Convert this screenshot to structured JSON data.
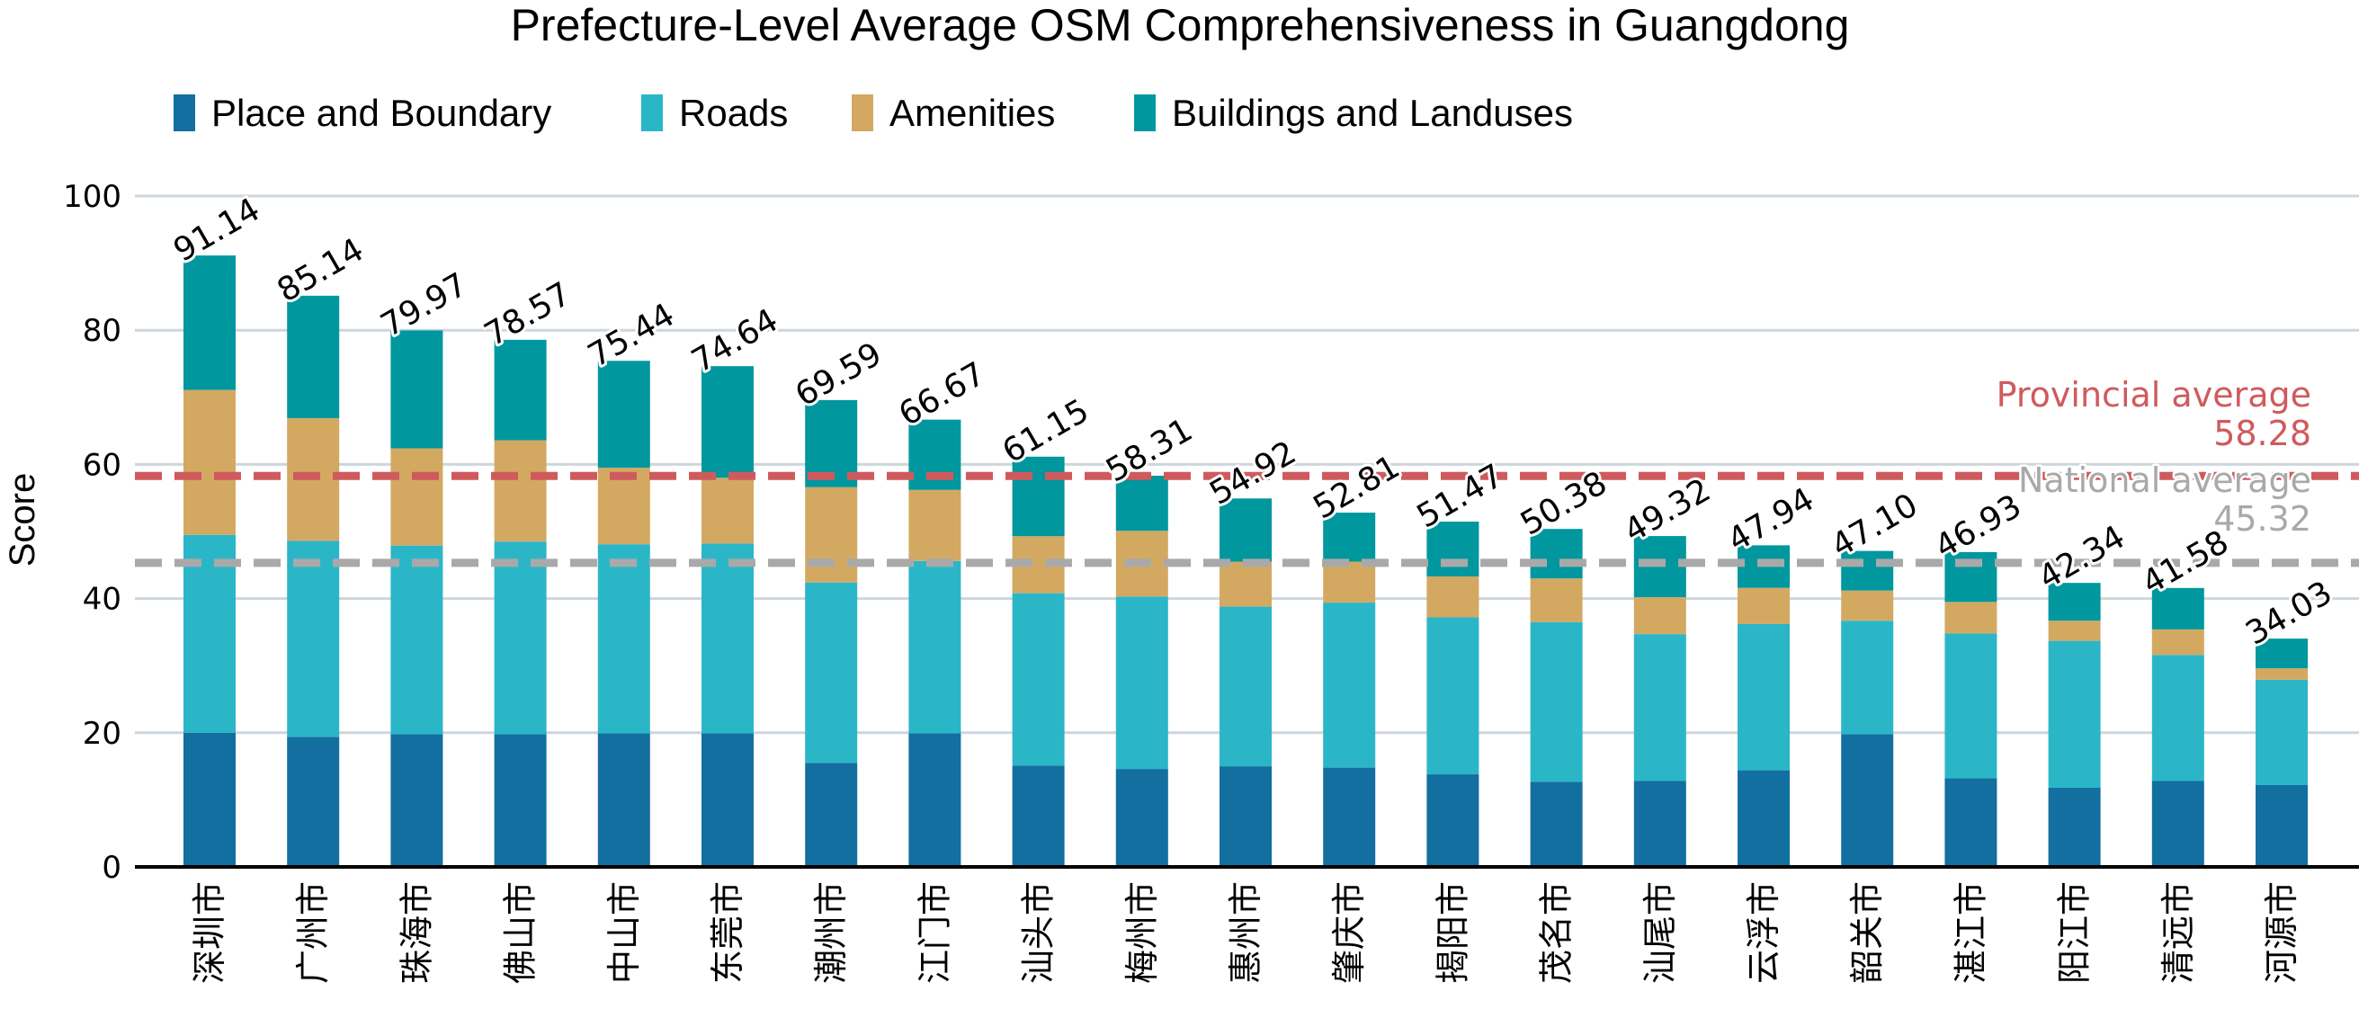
{
  "chart_data": {
    "type": "bar",
    "stacked": true,
    "title": "Prefecture-Level Average OSM Comprehensiveness in Guangdong",
    "xlabel": "",
    "ylabel": "Score",
    "ylim": [
      0,
      100
    ],
    "yticks": [
      0,
      20,
      40,
      60,
      80,
      100
    ],
    "grid": true,
    "legend_position": "top-left",
    "categories": [
      "深圳市",
      "广州市",
      "珠海市",
      "佛山市",
      "中山市",
      "东莞市",
      "潮州市",
      "江门市",
      "汕头市",
      "梅州市",
      "惠州市",
      "肇庆市",
      "揭阳市",
      "茂名市",
      "汕尾市",
      "云浮市",
      "韶关市",
      "湛江市",
      "阳江市",
      "清远市",
      "河源市"
    ],
    "totals": [
      91.14,
      85.14,
      79.97,
      78.57,
      75.44,
      74.64,
      69.59,
      66.67,
      61.15,
      58.31,
      54.92,
      52.81,
      51.47,
      50.38,
      49.32,
      47.94,
      47.1,
      46.93,
      42.34,
      41.58,
      34.03
    ],
    "total_labels": [
      "91.14",
      "85.14",
      "79.97",
      "78.57",
      "75.44",
      "74.64",
      "69.59",
      "66.67",
      "61.15",
      "58.31",
      "54.92",
      "52.81",
      "51.47",
      "50.38",
      "49.32",
      "47.94",
      "47.10",
      "46.93",
      "42.34",
      "41.58",
      "34.03"
    ],
    "series": [
      {
        "name": "Place and Boundary",
        "color": "#126fa0",
        "values": [
          20.0,
          19.4,
          19.8,
          19.8,
          19.9,
          19.9,
          15.5,
          19.9,
          15.1,
          14.6,
          15.0,
          14.8,
          13.8,
          12.7,
          12.8,
          14.4,
          19.8,
          13.2,
          11.8,
          12.8,
          12.2
        ]
      },
      {
        "name": "Roads",
        "color": "#2bb6c8",
        "values": [
          29.5,
          29.2,
          28.1,
          28.7,
          28.2,
          28.3,
          26.9,
          25.7,
          25.7,
          25.7,
          23.8,
          24.6,
          23.4,
          23.8,
          21.9,
          21.8,
          16.9,
          21.6,
          21.9,
          18.8,
          15.7
        ]
      },
      {
        "name": "Amenities",
        "color": "#d3a962",
        "values": [
          21.6,
          18.3,
          14.5,
          15.1,
          11.4,
          9.8,
          14.2,
          10.6,
          8.5,
          9.8,
          6.7,
          6.1,
          6.1,
          6.5,
          5.5,
          5.4,
          4.5,
          4.7,
          3.0,
          3.8,
          1.7
        ]
      },
      {
        "name": "Buildings and Landuses",
        "color": "#01979e",
        "values": [
          20.04,
          18.24,
          17.57,
          14.97,
          15.94,
          16.64,
          12.99,
          10.47,
          11.85,
          8.21,
          9.42,
          7.31,
          8.17,
          7.38,
          9.12,
          6.34,
          5.9,
          7.43,
          5.64,
          6.18,
          4.43
        ]
      }
    ],
    "reference_lines": [
      {
        "name": "Provincial average",
        "value": 58.28,
        "value_label": "58.28",
        "color": "#cf5a5d",
        "style": "dashed"
      },
      {
        "name": "National average",
        "value": 45.32,
        "value_label": "45.32",
        "color": "#a9a9a9",
        "style": "dashed"
      }
    ],
    "colors": {
      "grid": "#cdd6dd",
      "axis": "#000000"
    }
  }
}
